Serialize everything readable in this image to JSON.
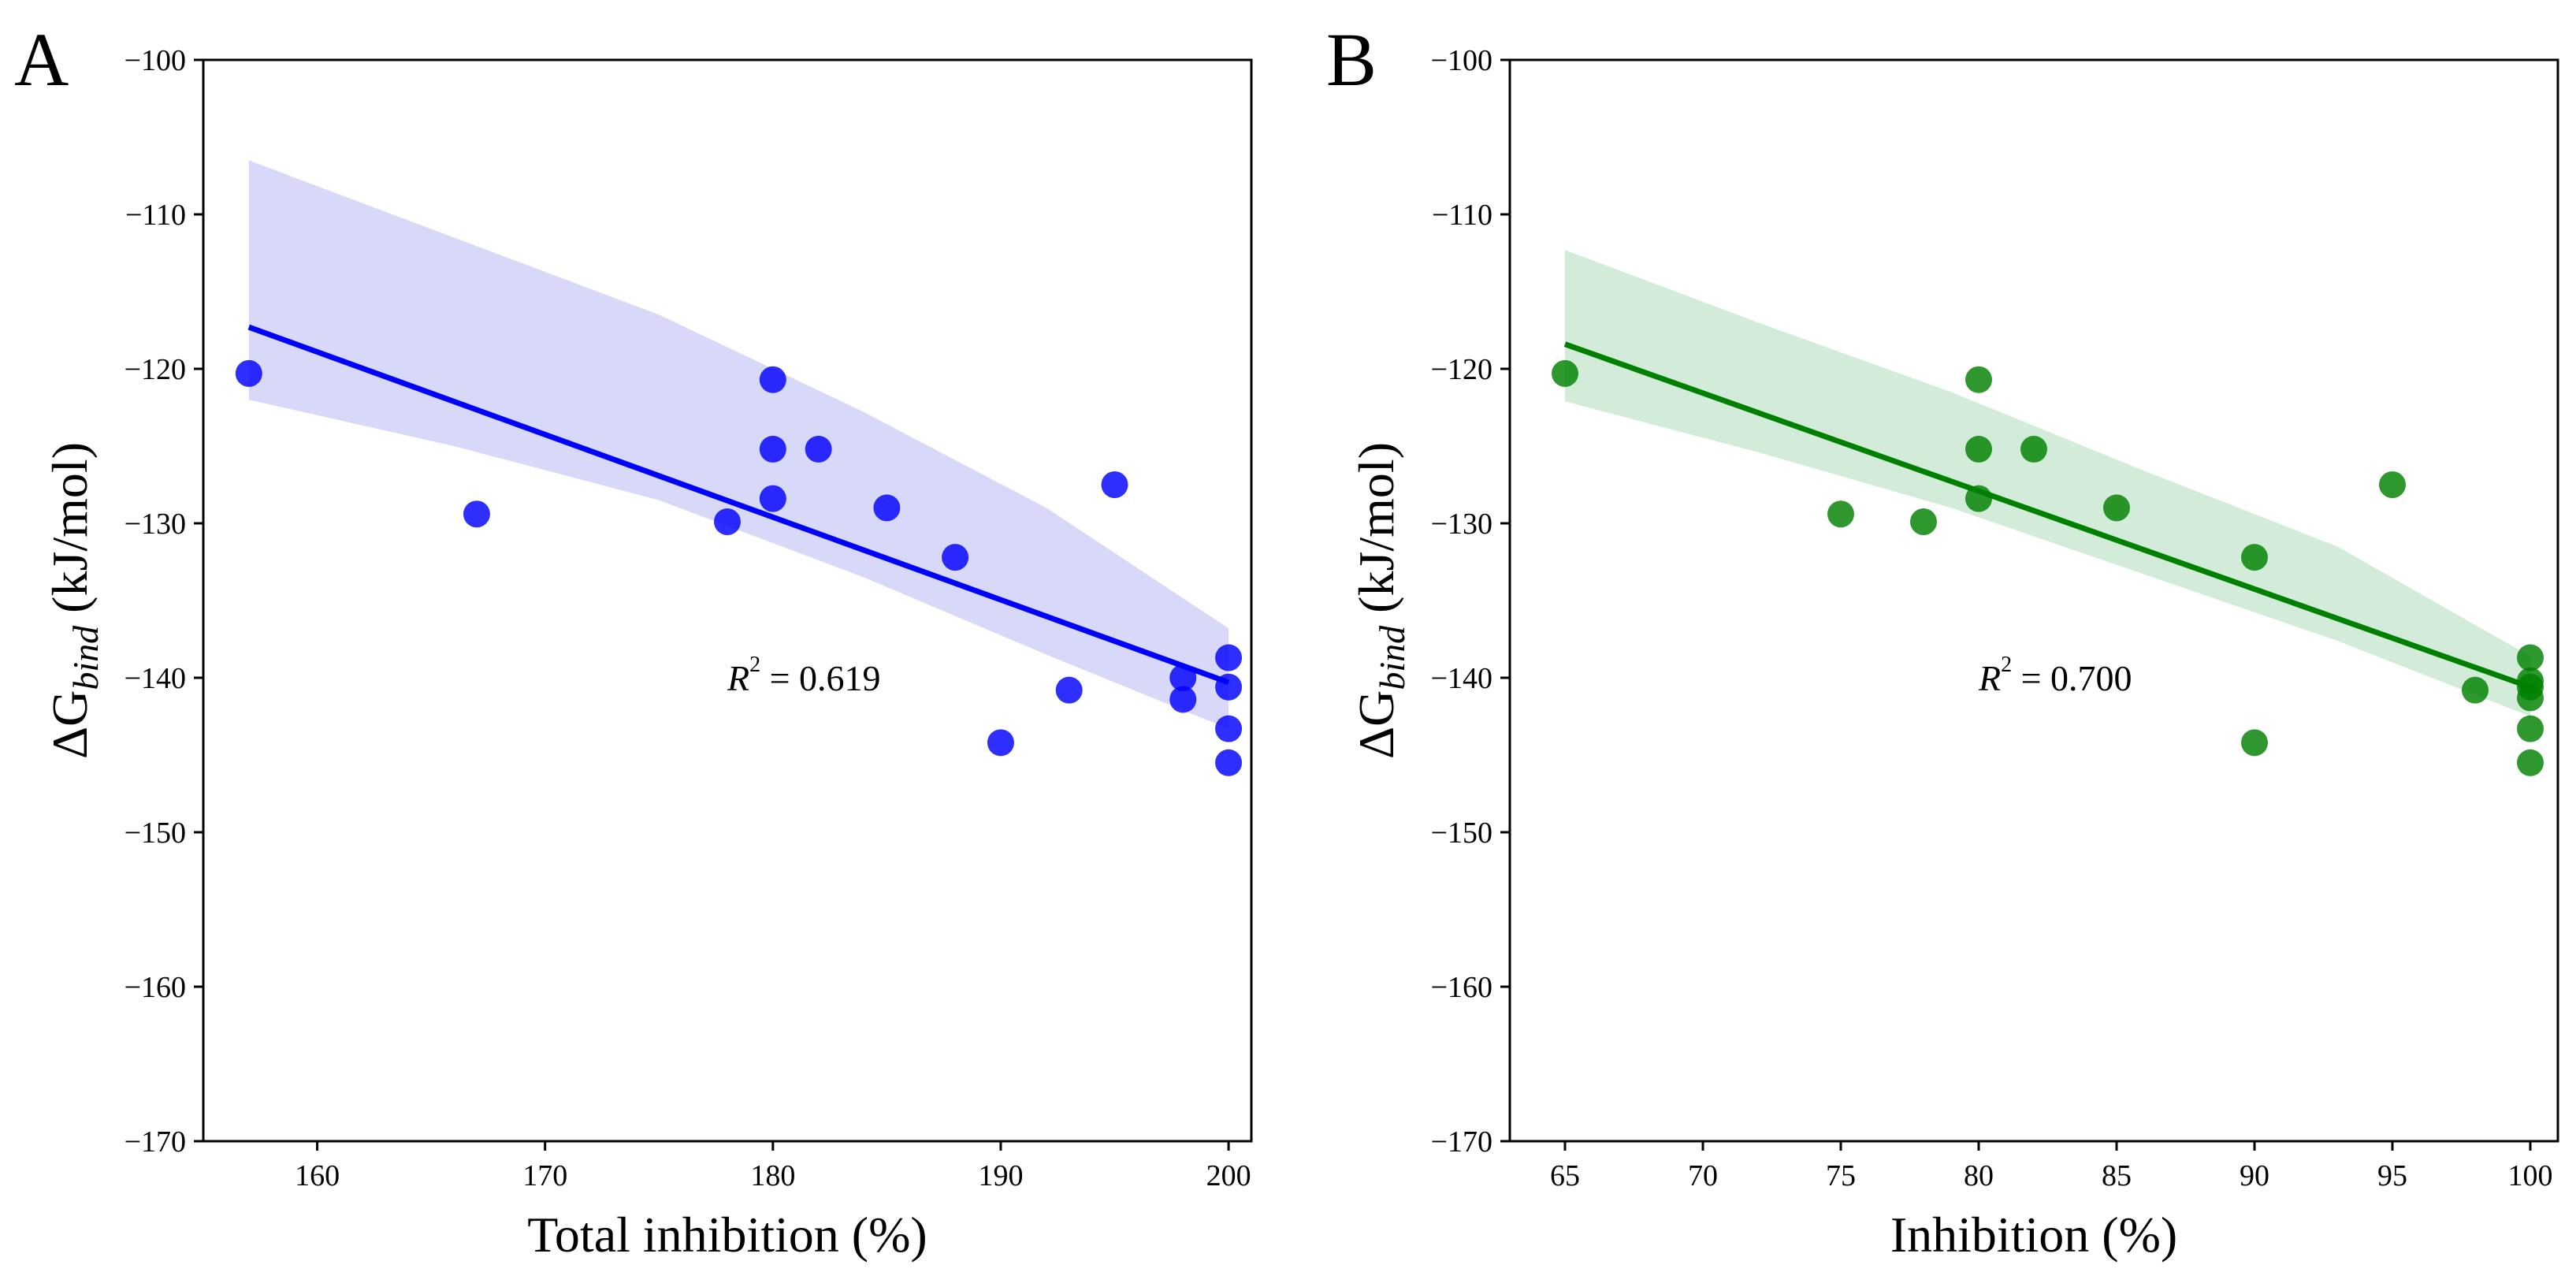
{
  "chart_data": [
    {
      "panel": "A",
      "type": "scatter",
      "title": "",
      "xlabel": "Total inhibition (%)",
      "ylabel": "ΔG",
      "ylabel_subscript": "bind",
      "ylabel_unit": " (kJ/mol)",
      "xlim": [
        155,
        201
      ],
      "ylim": [
        -170,
        -100
      ],
      "xticks": [
        160,
        170,
        180,
        190,
        200
      ],
      "yticks": [
        -100,
        -110,
        -120,
        -130,
        -140,
        -150,
        -160,
        -170
      ],
      "tick_prefix": "−",
      "grid": false,
      "color": "#0000ff",
      "band_color": "#d8d8f8",
      "annotation": {
        "label": "R",
        "sup": "2",
        "rest": " = 0.619",
        "x": 178,
        "y": -140
      },
      "points": [
        {
          "x": 157,
          "y": -120.3
        },
        {
          "x": 167,
          "y": -129.4
        },
        {
          "x": 178,
          "y": -129.9
        },
        {
          "x": 180,
          "y": -120.7
        },
        {
          "x": 180,
          "y": -125.2
        },
        {
          "x": 180,
          "y": -128.4
        },
        {
          "x": 182,
          "y": -125.2
        },
        {
          "x": 185,
          "y": -129.0
        },
        {
          "x": 188,
          "y": -132.2
        },
        {
          "x": 190,
          "y": -144.2
        },
        {
          "x": 193,
          "y": -140.8
        },
        {
          "x": 195,
          "y": -127.5
        },
        {
          "x": 198,
          "y": -140.0
        },
        {
          "x": 198,
          "y": -141.4
        },
        {
          "x": 200,
          "y": -138.7
        },
        {
          "x": 200,
          "y": -140.6
        },
        {
          "x": 200,
          "y": -143.3
        },
        {
          "x": 200,
          "y": -145.5
        }
      ],
      "fit": {
        "x": [
          157,
          200
        ],
        "y": [
          -117.3,
          -140.3
        ]
      },
      "band": {
        "x": [
          157,
          166,
          175,
          184,
          192,
          200
        ],
        "upper": [
          -106.5,
          -111.5,
          -116.5,
          -122.8,
          -129.0,
          -136.8
        ],
        "lower": [
          -122.0,
          -125.0,
          -128.5,
          -133.5,
          -138.5,
          -143.3
        ]
      }
    },
    {
      "panel": "B",
      "type": "scatter",
      "title": "",
      "xlabel": "Inhibition (%)",
      "ylabel": "ΔG",
      "ylabel_subscript": "bind",
      "ylabel_unit": " (kJ/mol)",
      "xlim": [
        63,
        101
      ],
      "ylim": [
        -170,
        -100
      ],
      "xticks": [
        65,
        70,
        75,
        80,
        85,
        90,
        95,
        100
      ],
      "yticks": [
        -100,
        -110,
        -120,
        -130,
        -140,
        -150,
        -160,
        -170
      ],
      "tick_prefix": "−",
      "grid": false,
      "color": "#008000",
      "band_color": "#d2ecd9",
      "annotation": {
        "label": "R",
        "sup": "2",
        "rest": " = 0.700",
        "x": 80,
        "y": -140
      },
      "points": [
        {
          "x": 65,
          "y": -120.3
        },
        {
          "x": 75,
          "y": -129.4
        },
        {
          "x": 78,
          "y": -129.9
        },
        {
          "x": 80,
          "y": -120.7
        },
        {
          "x": 80,
          "y": -125.2
        },
        {
          "x": 80,
          "y": -128.4
        },
        {
          "x": 82,
          "y": -125.2
        },
        {
          "x": 85,
          "y": -129.0
        },
        {
          "x": 90,
          "y": -132.2
        },
        {
          "x": 90,
          "y": -144.2
        },
        {
          "x": 95,
          "y": -127.5
        },
        {
          "x": 98,
          "y": -140.8
        },
        {
          "x": 100,
          "y": -138.7
        },
        {
          "x": 100,
          "y": -140.2
        },
        {
          "x": 100,
          "y": -140.6
        },
        {
          "x": 100,
          "y": -141.3
        },
        {
          "x": 100,
          "y": -143.3
        },
        {
          "x": 100,
          "y": -145.5
        }
      ],
      "fit": {
        "x": [
          65,
          100
        ],
        "y": [
          -118.4,
          -140.6
        ]
      },
      "band": {
        "x": [
          65,
          72,
          79,
          86,
          93,
          100
        ],
        "upper": [
          -112.3,
          -117.0,
          -121.5,
          -126.6,
          -131.5,
          -138.6
        ],
        "lower": [
          -122.1,
          -125.4,
          -129.0,
          -133.3,
          -137.6,
          -142.5
        ]
      }
    }
  ]
}
